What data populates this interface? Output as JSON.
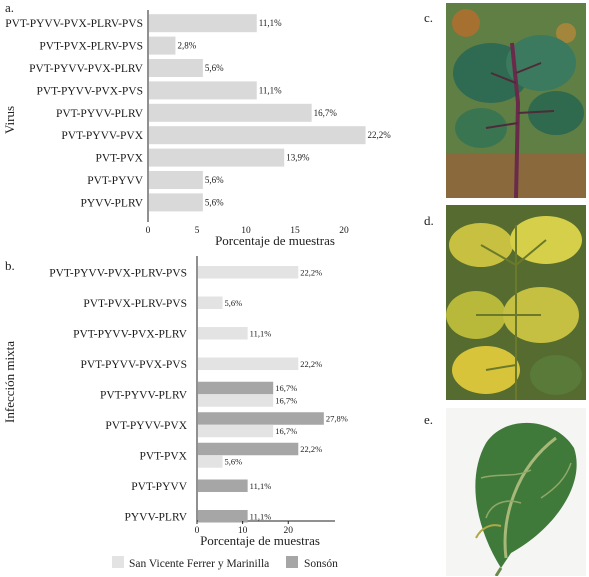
{
  "colors": {
    "bar_a": "#d9d9d9",
    "series_sanvicente": "#e3e3e3",
    "series_sonson": "#a6a6a6",
    "axis": "#222222",
    "text": "#1a1a1a"
  },
  "chart_data": [
    {
      "type": "bar",
      "orientation": "horizontal",
      "panel_label": "a.",
      "ylabel": "Virus",
      "xlabel": "Porcentaje de muestras",
      "xlim": [
        0,
        25
      ],
      "xticks": [
        "0",
        "5",
        "10",
        "15",
        "20"
      ],
      "grid": false,
      "categories": [
        "PVT-PYVV-PVX-PLRV-PVS",
        "PVT-PVX-PLRV-PVS",
        "PVT-PYVV-PVX-PLRV",
        "PVT-PYVV-PVX-PVS",
        "PVT-PYVV-PLRV",
        "PVT-PYVV-PVX",
        "PVT-PVX",
        "PVT-PYVV",
        "PYVV-PLRV"
      ],
      "values": [
        11.1,
        2.8,
        5.6,
        11.1,
        16.7,
        22.2,
        13.9,
        5.6,
        5.6
      ],
      "value_labels": [
        "11,1%",
        "2,8%",
        "5,6%",
        "11,1%",
        "16,7%",
        "22,2%",
        "13,9%",
        "5,6%",
        "5,6%"
      ]
    },
    {
      "type": "bar",
      "orientation": "horizontal",
      "panel_label": "b.",
      "ylabel": "Infección mixta",
      "xlabel": "Porcentaje de muestras",
      "xlim": [
        0,
        32
      ],
      "xticks": [
        "0",
        "10",
        "20"
      ],
      "grid": false,
      "legend_position": "bottom",
      "categories": [
        "PVT-PYVV-PVX-PLRV-PVS",
        "PVT-PVX-PLRV-PVS",
        "PVT-PYVV-PVX-PLRV",
        "PVT-PYVV-PVX-PVS",
        "PVT-PYVV-PLRV",
        "PVT-PYVV-PVX",
        "PVT-PVX",
        "PVT-PYVV",
        "PYVV-PLRV"
      ],
      "series": [
        {
          "name": "San Vicente Ferrer y Marinilla",
          "values": [
            22.2,
            5.6,
            11.1,
            22.2,
            16.7,
            16.7,
            5.6,
            null,
            null
          ],
          "value_labels": [
            "22,2%",
            "5,6%",
            "11,1%",
            "22,2%",
            "16,7%",
            "16,7%",
            "5,6%",
            "",
            ""
          ]
        },
        {
          "name": "Sonsón",
          "values": [
            null,
            null,
            null,
            null,
            16.7,
            27.8,
            22.2,
            11.1,
            11.1
          ],
          "value_labels": [
            "",
            "",
            "",
            "",
            "16,7%",
            "27,8%",
            "22,2%",
            "11,1%",
            "11,1%"
          ]
        }
      ]
    }
  ],
  "photos": [
    {
      "label": "c."
    },
    {
      "label": "d."
    },
    {
      "label": "e."
    }
  ]
}
